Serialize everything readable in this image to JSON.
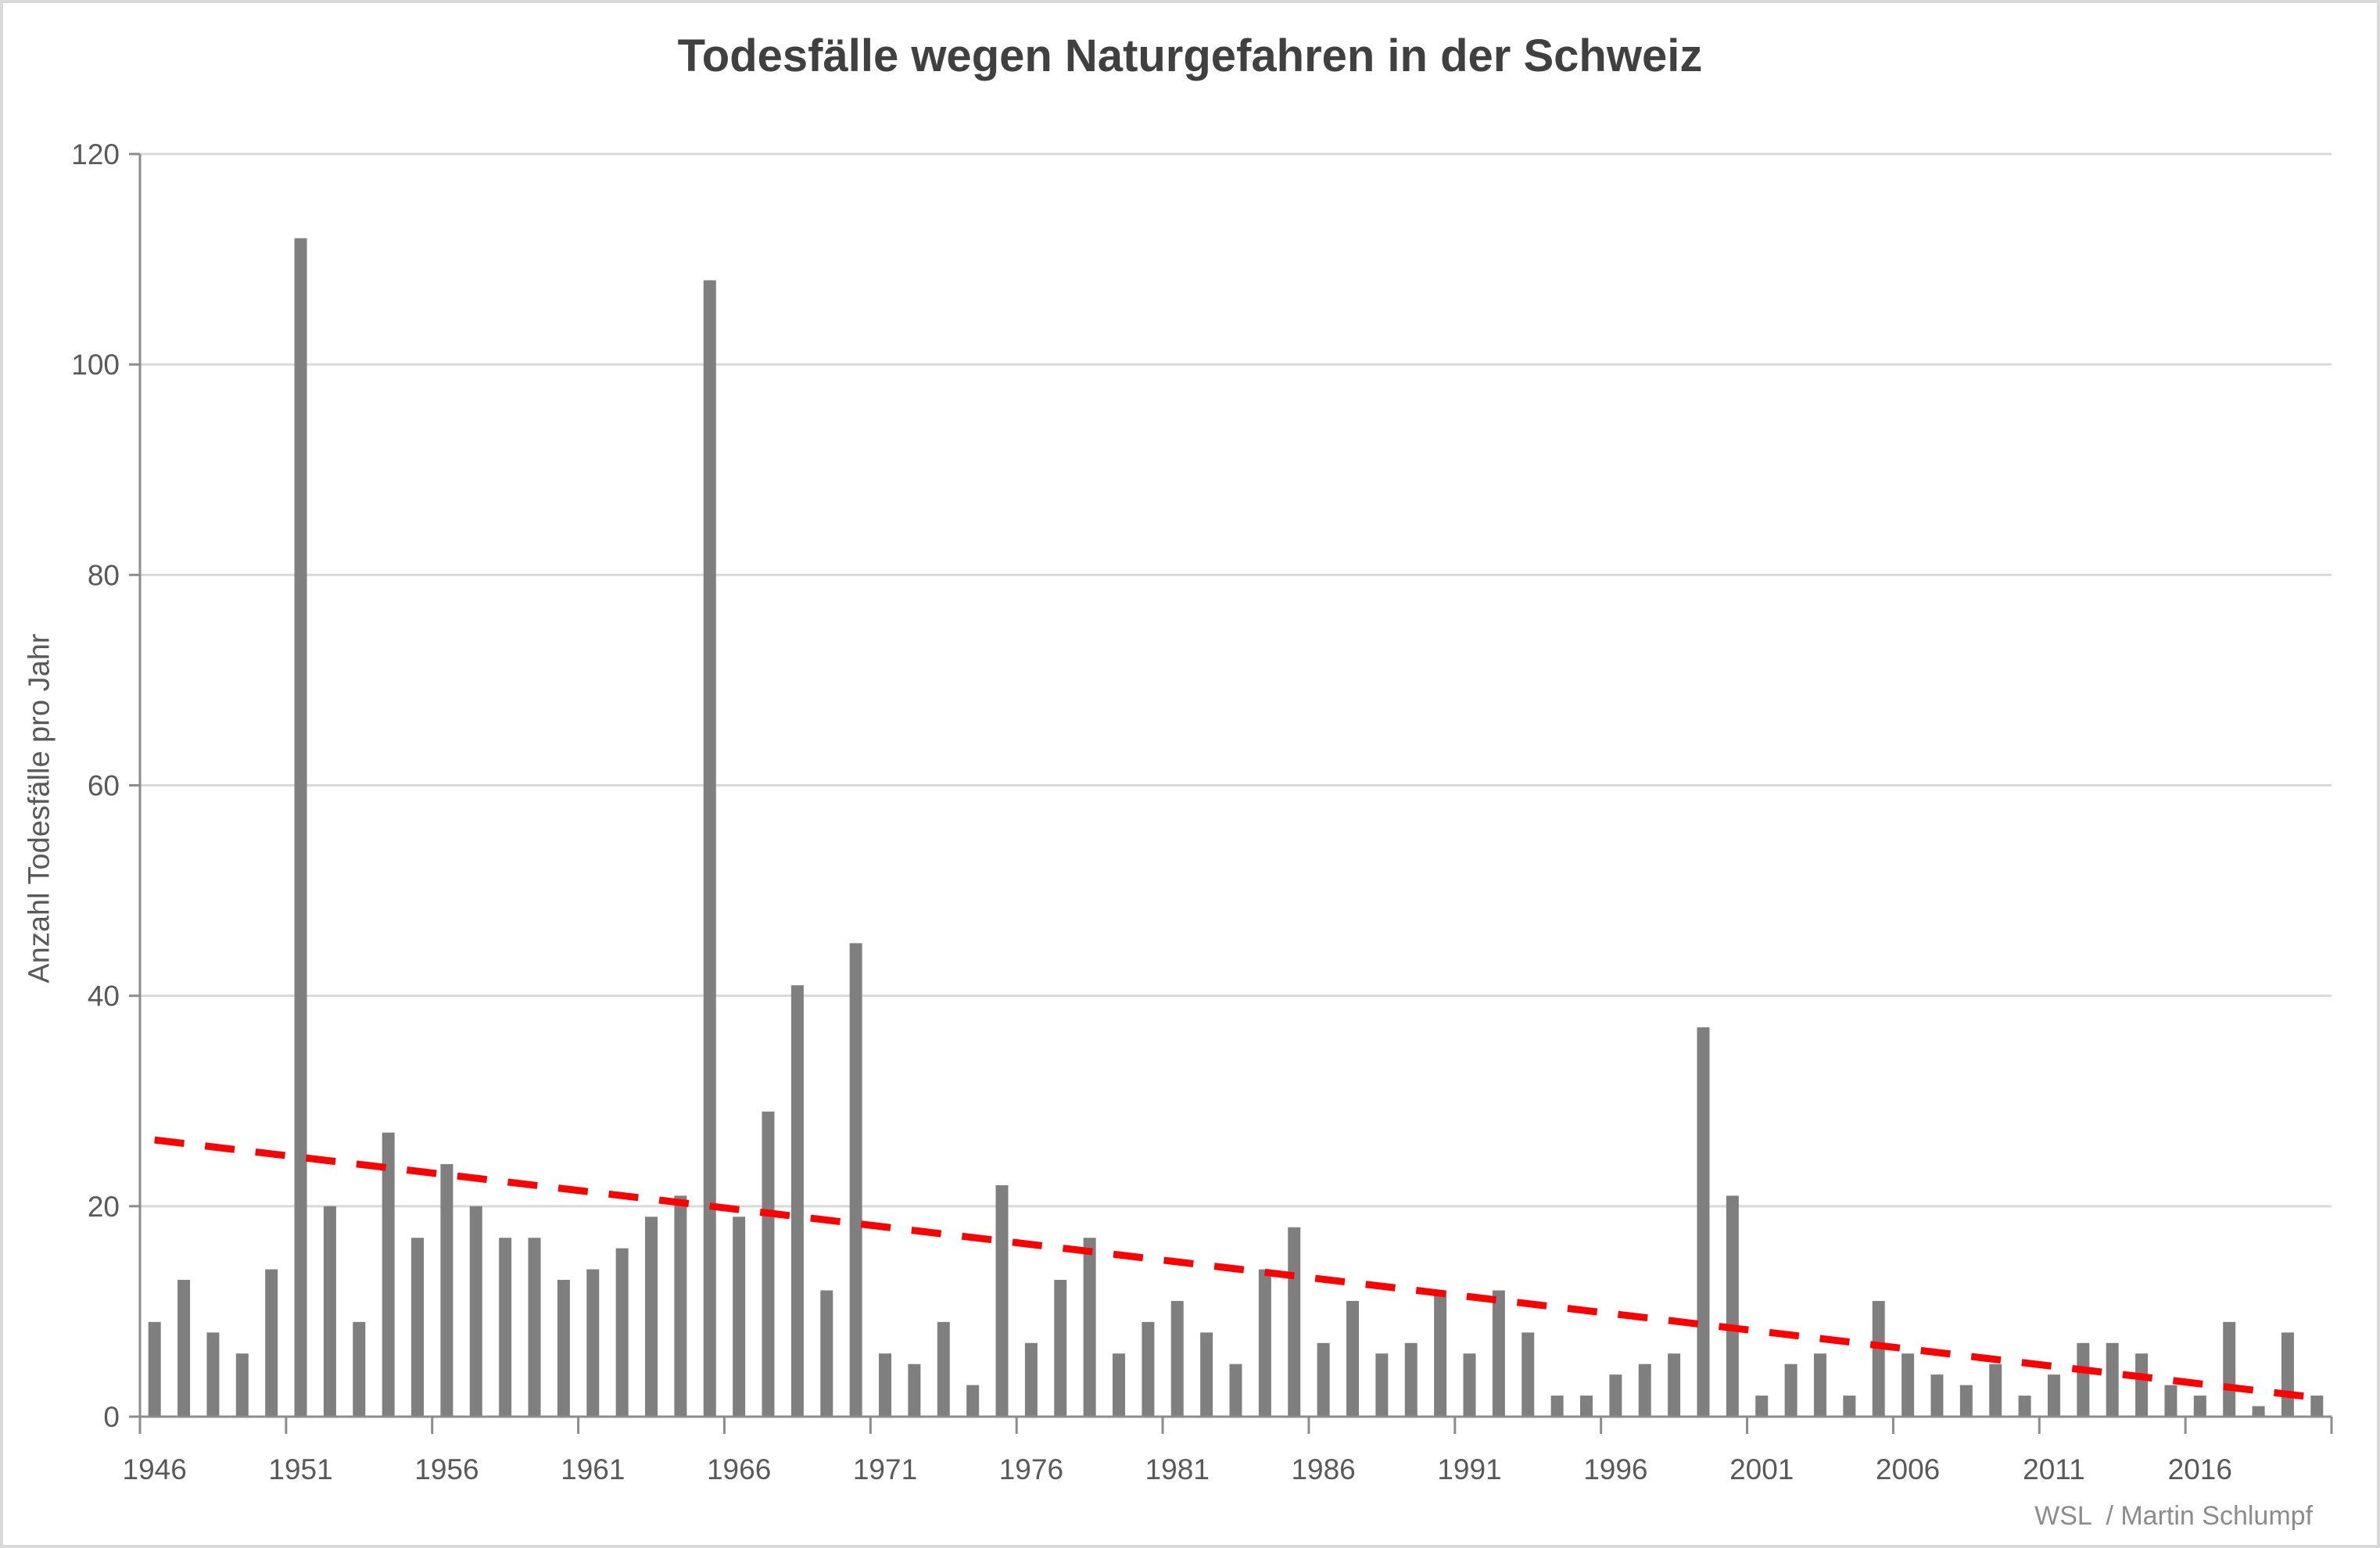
{
  "chart_data": {
    "type": "bar",
    "title": "Todesfälle wegen Naturgefahren in der Schweiz",
    "ylabel": "Anzahl Todesfälle pro Jahr",
    "xlabel": "",
    "categories": [
      1946,
      1947,
      1948,
      1949,
      1950,
      1951,
      1952,
      1953,
      1954,
      1955,
      1956,
      1957,
      1958,
      1959,
      1960,
      1961,
      1962,
      1963,
      1964,
      1965,
      1966,
      1967,
      1968,
      1969,
      1970,
      1971,
      1972,
      1973,
      1974,
      1975,
      1976,
      1977,
      1978,
      1979,
      1980,
      1981,
      1982,
      1983,
      1984,
      1985,
      1986,
      1987,
      1988,
      1989,
      1990,
      1991,
      1992,
      1993,
      1994,
      1995,
      1996,
      1997,
      1998,
      1999,
      2000,
      2001,
      2002,
      2003,
      2004,
      2005,
      2006,
      2007,
      2008,
      2009,
      2010,
      2011,
      2012,
      2013,
      2014,
      2015,
      2016,
      2017,
      2018,
      2019,
      2020
    ],
    "values": [
      9,
      13,
      8,
      6,
      14,
      112,
      20,
      9,
      27,
      17,
      24,
      20,
      17,
      17,
      13,
      14,
      16,
      19,
      21,
      108,
      19,
      29,
      41,
      12,
      45,
      6,
      5,
      9,
      3,
      22,
      7,
      13,
      17,
      6,
      9,
      11,
      8,
      5,
      14,
      18,
      7,
      11,
      6,
      7,
      12,
      6,
      12,
      8,
      2,
      2,
      4,
      5,
      6,
      37,
      21,
      2,
      5,
      6,
      2,
      11,
      6,
      4,
      3,
      5,
      2,
      4,
      7,
      7,
      6,
      3,
      2,
      9,
      1,
      8,
      2
    ],
    "ylim": [
      0,
      120
    ],
    "yticks": [
      0,
      20,
      40,
      60,
      80,
      100,
      120
    ],
    "xtick_years": [
      1946,
      1951,
      1956,
      1961,
      1966,
      1971,
      1976,
      1981,
      1986,
      1991,
      1996,
      2001,
      2006,
      2011,
      2016
    ],
    "grid": true,
    "legend": "none",
    "trendline": {
      "style": "dashed",
      "start_year": 1946,
      "start_value": 26.3,
      "end_year": 2020,
      "end_value": 1.8
    },
    "colors": {
      "bar": "#7f7f7f",
      "trend": "#ff0000",
      "grid": "#d9d9d9",
      "axis": "#8c8c8c",
      "tick_label": "#595959",
      "title": "#404040"
    }
  },
  "attribution": {
    "text": "WSL  / Martin Schlumpf"
  }
}
